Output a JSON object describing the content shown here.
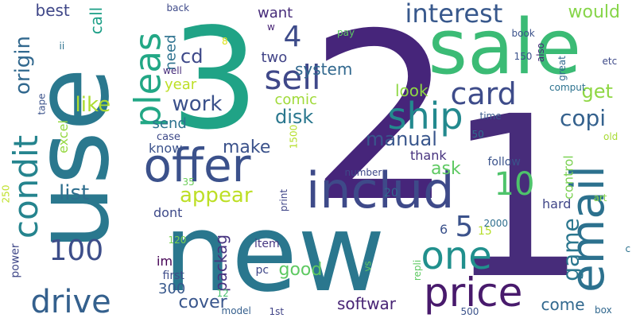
{
  "words": [
    {
      "id": "w-2",
      "text": "2",
      "color": "#46257a"
    },
    {
      "id": "w-1",
      "text": "1",
      "color": "#472c7a"
    },
    {
      "id": "w-new",
      "text": "new",
      "color": "#2a778e"
    },
    {
      "id": "w-3",
      "text": "3",
      "color": "#20a386"
    },
    {
      "id": "w-use",
      "text": "use",
      "color": "#2a788e"
    },
    {
      "id": "w-sale",
      "text": "sale",
      "color": "#3bbb75"
    },
    {
      "id": "w-includ",
      "text": "includ",
      "color": "#3e4a89"
    },
    {
      "id": "w-offer",
      "text": "offer",
      "color": "#3b518b"
    },
    {
      "id": "w-email",
      "text": "email",
      "color": "#2c718e"
    },
    {
      "id": "w-price",
      "text": "price",
      "color": "#481a6c"
    },
    {
      "id": "w-one",
      "text": "one",
      "color": "#21908d"
    },
    {
      "id": "w-condit",
      "text": "condit",
      "color": "#25848e"
    },
    {
      "id": "w-drive",
      "text": "drive",
      "color": "#34608d"
    },
    {
      "id": "w-pleas",
      "text": "pleas",
      "color": "#22a785"
    },
    {
      "id": "w-ship",
      "text": "ship",
      "color": "#23898e"
    },
    {
      "id": "w-sell",
      "text": "sell",
      "color": "#3f4889"
    },
    {
      "id": "w-card",
      "text": "card",
      "color": "#3e4c8a"
    },
    {
      "id": "w-100",
      "text": "100",
      "color": "#3d4e8a"
    },
    {
      "id": "w-interest",
      "text": "interest",
      "color": "#38588c"
    },
    {
      "id": "w-10",
      "text": "10",
      "color": "#4ec36b"
    },
    {
      "id": "w-game",
      "text": "game",
      "color": "#2a768e"
    },
    {
      "id": "w-origin",
      "text": "origin",
      "color": "#31688e"
    },
    {
      "id": "w-appear",
      "text": "appear",
      "color": "#bddf26"
    },
    {
      "id": "w-like",
      "text": "like",
      "color": "#addc30"
    },
    {
      "id": "w-copi",
      "text": "copi",
      "color": "#34618d"
    },
    {
      "id": "w-5",
      "text": "5",
      "color": "#3b528b"
    },
    {
      "id": "w-4",
      "text": "4",
      "color": "#3e4c8a"
    },
    {
      "id": "w-work",
      "text": "work",
      "color": "#3b518b"
    },
    {
      "id": "w-cd",
      "text": "cd",
      "color": "#3e4989"
    },
    {
      "id": "w-list",
      "text": "list",
      "color": "#2e6e8e"
    },
    {
      "id": "w-manual",
      "text": "manual",
      "color": "#39568c"
    },
    {
      "id": "w-disk",
      "text": "disk",
      "color": "#2a778e"
    },
    {
      "id": "w-make",
      "text": "make",
      "color": "#3b528b"
    },
    {
      "id": "w-ask",
      "text": "ask",
      "color": "#5ec962"
    },
    {
      "id": "w-would",
      "text": "would",
      "color": "#86d549"
    },
    {
      "id": "w-get",
      "text": "get",
      "color": "#8fd744"
    },
    {
      "id": "w-cover",
      "text": "cover",
      "color": "#39568c"
    },
    {
      "id": "w-good",
      "text": "good",
      "color": "#5ec962"
    },
    {
      "id": "w-come",
      "text": "come",
      "color": "#31688e"
    },
    {
      "id": "w-softwar",
      "text": "softwar",
      "color": "#482475"
    },
    {
      "id": "w-packag",
      "text": "packag",
      "color": "#46337f"
    },
    {
      "id": "w-system",
      "text": "system",
      "color": "#31688e"
    },
    {
      "id": "w-look",
      "text": "look",
      "color": "#8fd744"
    },
    {
      "id": "w-best",
      "text": "best",
      "color": "#3f4788"
    },
    {
      "id": "w-call",
      "text": "call",
      "color": "#1fa088"
    },
    {
      "id": "w-year",
      "text": "year",
      "color": "#bddf26"
    },
    {
      "id": "w-need",
      "text": "need",
      "color": "#2c718e"
    },
    {
      "id": "w-want",
      "text": "want",
      "color": "#472c7a"
    },
    {
      "id": "w-two",
      "text": "two",
      "color": "#414487"
    },
    {
      "id": "w-comic",
      "text": "comic",
      "color": "#a0da39"
    },
    {
      "id": "w-send",
      "text": "send",
      "color": "#2c728e"
    },
    {
      "id": "w-know",
      "text": "know",
      "color": "#3b528b"
    },
    {
      "id": "w-excel",
      "text": "excel",
      "color": "#95d840"
    },
    {
      "id": "w-thank",
      "text": "thank",
      "color": "#46327e"
    },
    {
      "id": "w-dont",
      "text": "dont",
      "color": "#3e4a89"
    },
    {
      "id": "w-hard",
      "text": "hard",
      "color": "#404688"
    },
    {
      "id": "w-control",
      "text": "control",
      "color": "#7ad151"
    },
    {
      "id": "w-im",
      "text": "im",
      "color": "#440154"
    },
    {
      "id": "w-300",
      "text": "300",
      "color": "#38598c"
    },
    {
      "id": "w-power",
      "text": "power",
      "color": "#3f4788"
    },
    {
      "id": "w-15",
      "text": "15",
      "color": "#b5de2b"
    },
    {
      "id": "w-6",
      "text": "6",
      "color": "#3b528b"
    },
    {
      "id": "w-20",
      "text": "20",
      "color": "#31688e"
    },
    {
      "id": "w-follow",
      "text": "follow",
      "color": "#3a538b"
    },
    {
      "id": "w-item",
      "text": "item",
      "color": "#453781"
    },
    {
      "id": "w-pc",
      "text": "pc",
      "color": "#3f4788"
    },
    {
      "id": "w-first",
      "text": "first",
      "color": "#3e4c8a"
    },
    {
      "id": "w-vs",
      "text": "vs",
      "color": "#5ec962"
    },
    {
      "id": "w-repli",
      "text": "repli",
      "color": "#5ec962"
    },
    {
      "id": "w-print",
      "text": "print",
      "color": "#404688"
    },
    {
      "id": "w-1500",
      "text": "1500",
      "color": "#b5de2b"
    },
    {
      "id": "w-case",
      "text": "case",
      "color": "#3e4a89"
    },
    {
      "id": "w-50",
      "text": "50",
      "color": "#2e6e8e"
    },
    {
      "id": "w-time",
      "text": "time",
      "color": "#38598c"
    },
    {
      "id": "w-old",
      "text": "old",
      "color": "#a8db34"
    },
    {
      "id": "w-art",
      "text": "art",
      "color": "#86d549"
    },
    {
      "id": "w-2000",
      "text": "2000",
      "color": "#2e6e8e"
    },
    {
      "id": "w-box",
      "text": "box",
      "color": "#31688e"
    },
    {
      "id": "w-500",
      "text": "500",
      "color": "#3b528b"
    },
    {
      "id": "w-c",
      "text": "c",
      "color": "#2c728e"
    },
    {
      "id": "w-120",
      "text": "120",
      "color": "#7ad151"
    },
    {
      "id": "w-35",
      "text": "35",
      "color": "#6ccd5a"
    },
    {
      "id": "w-12",
      "text": "12",
      "color": "#48c16e"
    },
    {
      "id": "w-model",
      "text": "model",
      "color": "#355f8d"
    },
    {
      "id": "w-1st",
      "text": "1st",
      "color": "#414487"
    },
    {
      "id": "w-number",
      "text": "number",
      "color": "#3f4889"
    },
    {
      "id": "w-250",
      "text": "250",
      "color": "#bddf26"
    },
    {
      "id": "w-tape",
      "text": "tape",
      "color": "#3b528b"
    },
    {
      "id": "w-ii",
      "text": "ii",
      "color": "#2c728e"
    },
    {
      "id": "w-back",
      "text": "back",
      "color": "#3e4a89"
    },
    {
      "id": "w-8",
      "text": "8",
      "color": "#dde318"
    },
    {
      "id": "w-w",
      "text": "w",
      "color": "#482475"
    },
    {
      "id": "w-well",
      "text": "well",
      "color": "#472d7b"
    },
    {
      "id": "w-pay",
      "text": "pay",
      "color": "#5ec962"
    },
    {
      "id": "w-book",
      "text": "book",
      "color": "#3b528b"
    },
    {
      "id": "w-150",
      "text": "150",
      "color": "#3b528b"
    },
    {
      "id": "w-also",
      "text": "also",
      "color": "#482878"
    },
    {
      "id": "w-great",
      "text": "great",
      "color": "#31688e"
    },
    {
      "id": "w-etc",
      "text": "etc",
      "color": "#3e4a89"
    },
    {
      "id": "w-comput",
      "text": "comput",
      "color": "#2c728e"
    }
  ]
}
